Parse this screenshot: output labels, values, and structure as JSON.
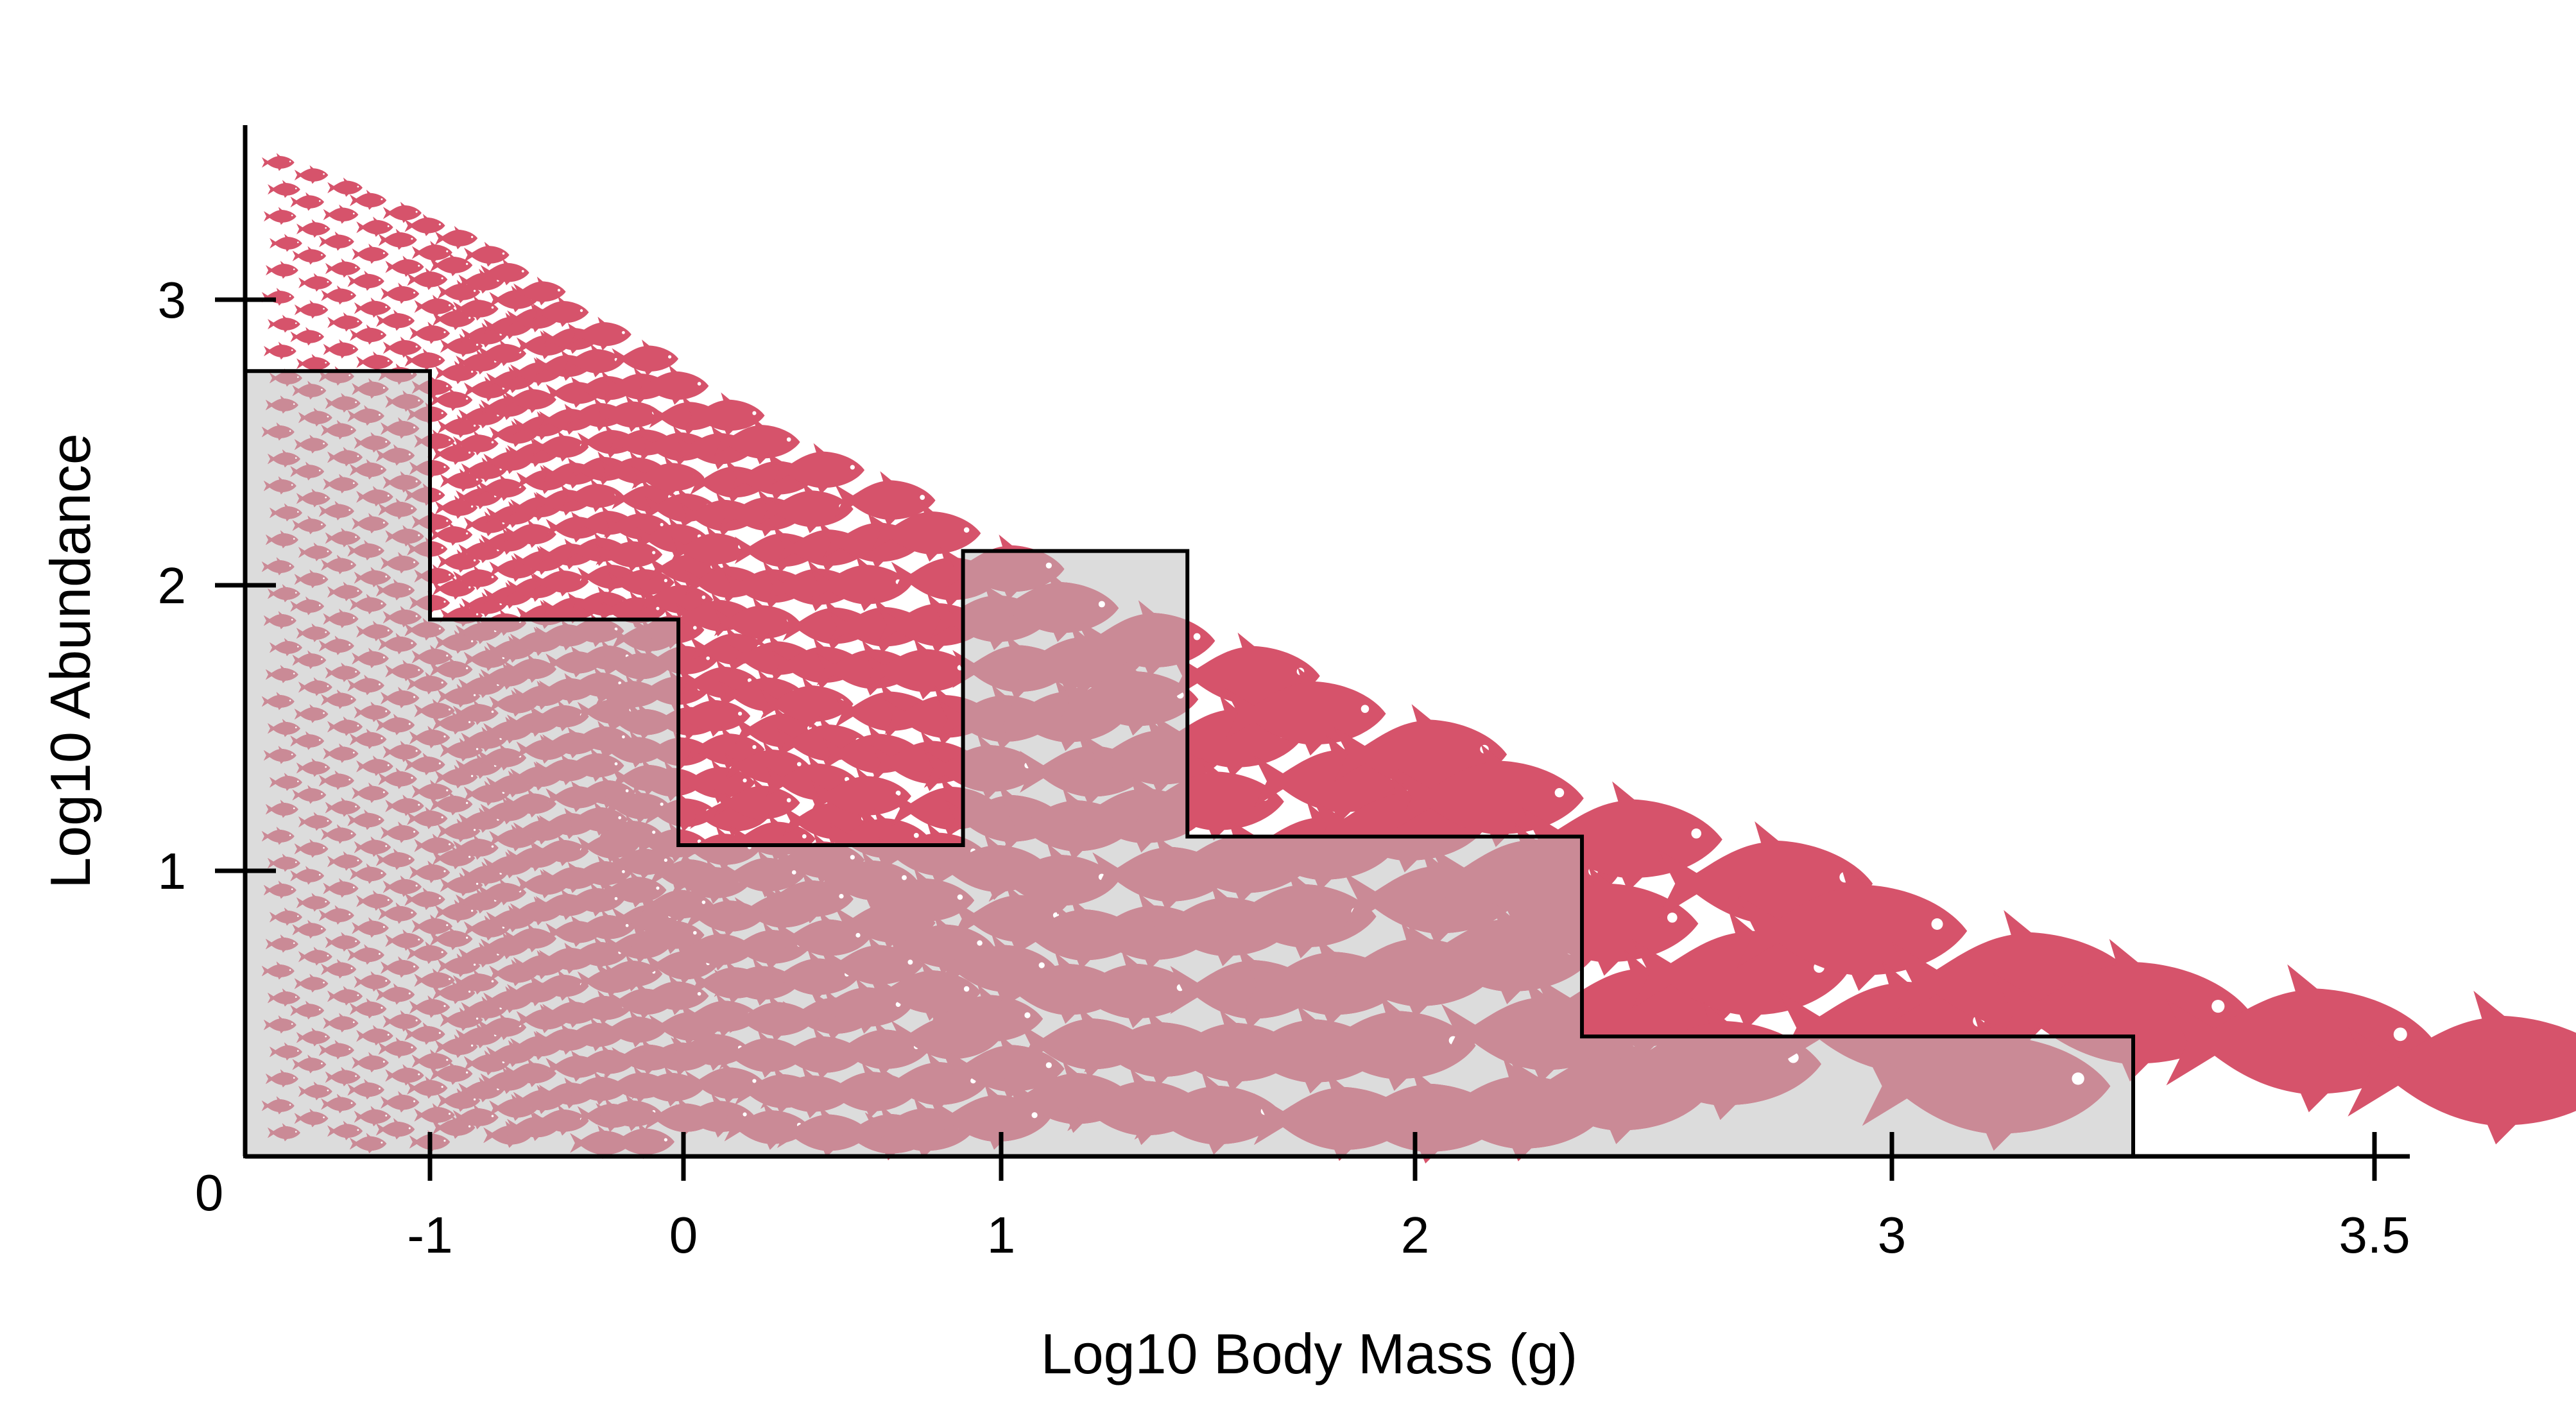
{
  "chart_data": {
    "type": "area",
    "xlabel": "Log10 Body Mass (g)",
    "ylabel": "Log10 Abundance",
    "x_ticks": [
      {
        "label": "-1",
        "value": -1
      },
      {
        "label": "0",
        "value": 0
      },
      {
        "label": "1",
        "value": 1
      },
      {
        "label": "2",
        "value": 2
      },
      {
        "label": "3",
        "value": 3
      },
      {
        "label": "3.5",
        "value": 3.5
      }
    ],
    "y_ticks": [
      {
        "label": "1",
        "value": 1
      },
      {
        "label": "2",
        "value": 2
      },
      {
        "label": "3",
        "value": 3
      }
    ],
    "origin_label": "0",
    "grid": false,
    "legend": "none",
    "colors": {
      "fish": "#d6536b",
      "fish_shaded": "#ca8a96",
      "area_fill": "#dcdcdc",
      "outline": "#000000"
    },
    "stepped_region": [
      {
        "x0": -1.45,
        "x1": -1.0,
        "y": 2.75
      },
      {
        "x0": -1.0,
        "x1": -0.02,
        "y": 1.88
      },
      {
        "x0": -0.02,
        "x1": 0.88,
        "y": 1.09
      },
      {
        "x0": 0.88,
        "x1": 1.45,
        "y": 2.12
      },
      {
        "x0": 1.45,
        "x1": 2.35,
        "y": 1.12
      },
      {
        "x0": 2.35,
        "x1": 3.25,
        "y": 0.42
      }
    ],
    "population_triangle": {
      "x_start": -1.45,
      "x_end": 3.85,
      "y_at_start": 3.55,
      "y_at_end": 0.2
    }
  }
}
